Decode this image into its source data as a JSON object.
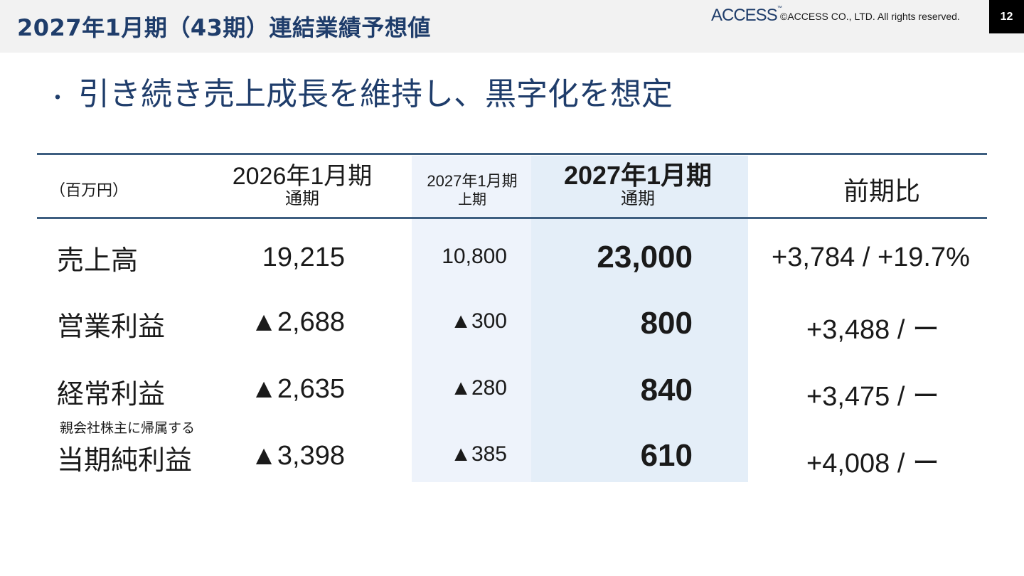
{
  "header": {
    "title": "2027年1月期（43期）連結業績予想値",
    "logo_text": "ACCESS",
    "logo_tm": "™",
    "copyright": "©ACCESS CO., LTD. All rights reserved.",
    "page_number": "12"
  },
  "bullet": {
    "dot": "・",
    "text": "引き続き売上成長を維持し、黒字化を想定"
  },
  "table": {
    "unit_label": "（百万円）",
    "columns": {
      "fy2026": {
        "line1": "2026年1月期",
        "line2": "通期"
      },
      "fy2027_h1": {
        "line1": "2027年1月期",
        "line2": "上期"
      },
      "fy2027": {
        "line1": "2027年1月期",
        "line2": "通期"
      },
      "yoy": {
        "line1": "前期比"
      }
    },
    "rows": [
      {
        "label": "売上高",
        "fy2026": "19,215",
        "fy2027_h1": "10,800",
        "fy2027": "23,000",
        "yoy": "+3,784 / +19.7%"
      },
      {
        "label": "営業利益",
        "fy2026": "▲2,688",
        "fy2027_h1": "▲300",
        "fy2027": "800",
        "yoy": "+3,488 / ー"
      },
      {
        "label": "経常利益",
        "fy2026": "▲2,635",
        "fy2027_h1": "▲280",
        "fy2027": "840",
        "yoy": "+3,475 / ー"
      },
      {
        "label": "当期純利益",
        "note": "親会社株主に帰属する",
        "fy2026": "▲3,398",
        "fy2027_h1": "▲385",
        "fy2027": "610",
        "yoy": "+4,008 / ー"
      }
    ]
  },
  "colors": {
    "title": "#1f3d6b",
    "header_bg": "#f2f2f2",
    "rule": "#3d5e80",
    "h1_column_bg": "#eef3fb",
    "fy_column_bg": "#e4eef8"
  }
}
